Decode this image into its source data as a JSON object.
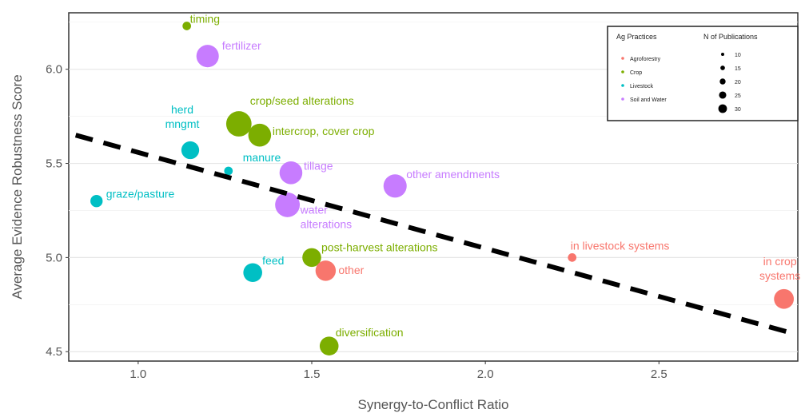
{
  "chart_data": {
    "type": "scatter",
    "title": "",
    "xlabel": "Synergy-to-Conflict Ratio",
    "ylabel": "Average Evidence Robustness Score",
    "xlim": [
      0.8,
      2.9
    ],
    "ylim": [
      4.45,
      6.3
    ],
    "x_ticks": [
      1.0,
      1.5,
      2.0,
      2.5
    ],
    "x_tick_labels": [
      "1.0",
      "1.5",
      "2.0",
      "2.5"
    ],
    "y_ticks": [
      4.5,
      5.0,
      5.5,
      6.0
    ],
    "y_tick_labels": [
      "4.5",
      "5.0",
      "5.5",
      "6.0"
    ],
    "grid": true,
    "legend_position": "top-right",
    "trendline": {
      "style": "dashed",
      "color": "#000000",
      "x": [
        0.82,
        2.88
      ],
      "y": [
        5.65,
        4.6
      ]
    },
    "color_legend": {
      "title": "Ag Practices",
      "entries": [
        {
          "label": "Agroforestry",
          "color": "#F8766D"
        },
        {
          "label": "Crop",
          "color": "#7CAE00"
        },
        {
          "label": "Livestock",
          "color": "#00BFC4"
        },
        {
          "label": "Soil and Water",
          "color": "#C77CFF"
        }
      ]
    },
    "size_legend": {
      "title": "N of Publications",
      "entries": [
        {
          "label": "10",
          "value": 10
        },
        {
          "label": "15",
          "value": 15
        },
        {
          "label": "20",
          "value": 20
        },
        {
          "label": "25",
          "value": 25
        },
        {
          "label": "30",
          "value": 30
        }
      ]
    },
    "points": [
      {
        "label": "timing",
        "group": "Crop",
        "x": 1.14,
        "y": 6.23,
        "n": 1
      },
      {
        "label": "fertilizer",
        "group": "Soil and Water",
        "x": 1.2,
        "y": 6.07,
        "n": 22
      },
      {
        "label": "crop/seed alterations",
        "group": "Crop",
        "x": 1.29,
        "y": 5.71,
        "n": 30
      },
      {
        "label": "intercrop, cover crop",
        "group": "Crop",
        "x": 1.35,
        "y": 5.65,
        "n": 23
      },
      {
        "label": "herd\nmngmt",
        "group": "Livestock",
        "x": 1.15,
        "y": 5.57,
        "n": 12
      },
      {
        "label": "manure",
        "group": "Livestock",
        "x": 1.26,
        "y": 5.46,
        "n": 1
      },
      {
        "label": "tillage",
        "group": "Soil and Water",
        "x": 1.44,
        "y": 5.45,
        "n": 23
      },
      {
        "label": "other amendments",
        "group": "Soil and Water",
        "x": 1.74,
        "y": 5.38,
        "n": 24
      },
      {
        "label": "graze/pasture",
        "group": "Livestock",
        "x": 0.88,
        "y": 5.3,
        "n": 4
      },
      {
        "label": "water\nalterations",
        "group": "Soil and Water",
        "x": 1.43,
        "y": 5.28,
        "n": 28
      },
      {
        "label": "post-harvest alterations",
        "group": "Crop",
        "x": 1.5,
        "y": 5.0,
        "n": 14
      },
      {
        "label": "in livestock systems",
        "group": "Agroforestry",
        "x": 2.25,
        "y": 5.0,
        "n": 1
      },
      {
        "label": "feed",
        "group": "Livestock",
        "x": 1.33,
        "y": 4.92,
        "n": 14
      },
      {
        "label": "other",
        "group": "Agroforestry",
        "x": 1.54,
        "y": 4.93,
        "n": 17
      },
      {
        "label": "in crop\nsystems",
        "group": "Agroforestry",
        "x": 2.86,
        "y": 4.78,
        "n": 16
      },
      {
        "label": "diversification",
        "group": "Crop",
        "x": 1.55,
        "y": 4.53,
        "n": 14
      }
    ]
  }
}
